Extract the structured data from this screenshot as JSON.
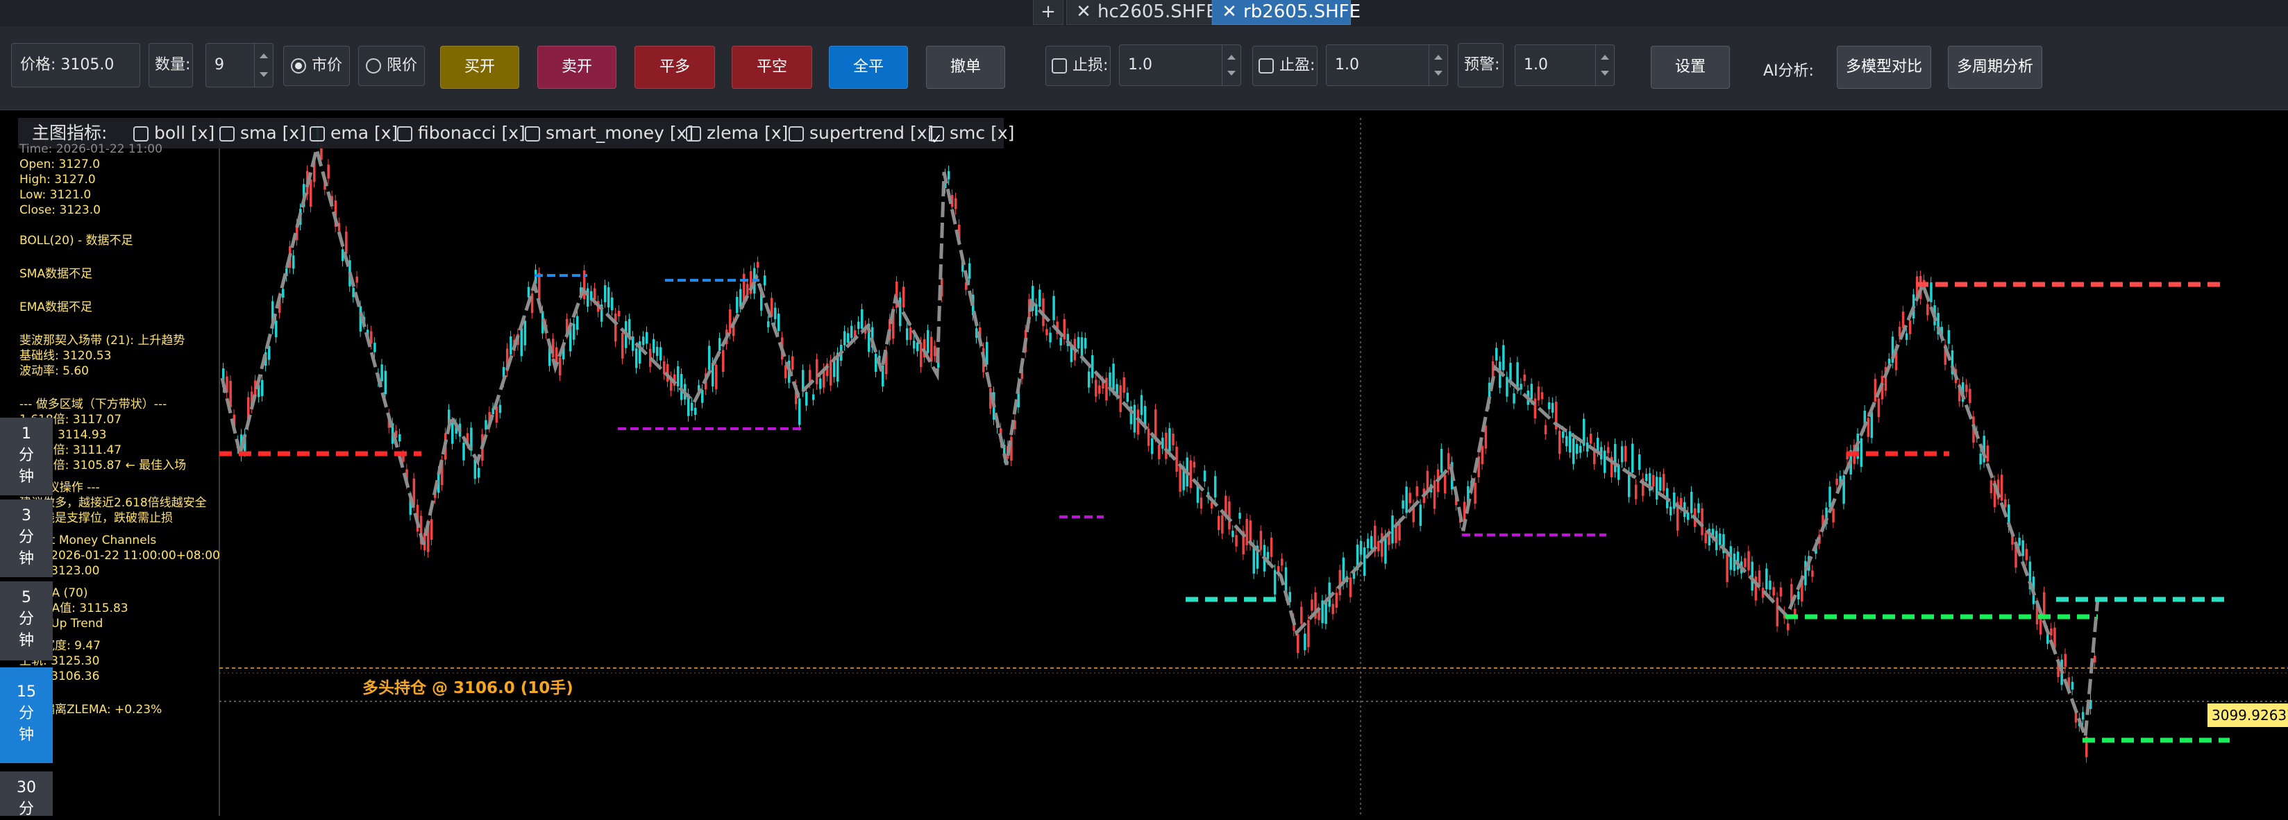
{
  "tabs": {
    "add_label": "+",
    "items": [
      {
        "label": "hc2605.SHFE",
        "active": false
      },
      {
        "label": "rb2605.SHFE",
        "active": true
      }
    ]
  },
  "toolbar": {
    "price": "价格: 3105.0",
    "qty_label": "数量:",
    "qty_value": "9",
    "market_label": "市价",
    "limit_label": "限价",
    "buy_open": "买开",
    "sell_open": "卖开",
    "close_long": "平多",
    "close_short": "平空",
    "close_all": "全平",
    "cancel": "撤单",
    "stoploss_label": "止损:",
    "stoploss_value": "1.0",
    "takeprofit_label": "止盈:",
    "takeprofit_value": "1.0",
    "alert_label": "预警:",
    "alert_value": "1.0",
    "settings": "设置",
    "ai_label": "AI分析:",
    "multi_model": "多模型对比",
    "multi_period": "多周期分析",
    "colors": {
      "buy_open": "#7f6800",
      "sell_open": "#8a1f44",
      "close_long": "#8d1d24",
      "close_short": "#8d1d24",
      "close_all": "#0a6fc9",
      "neutral": "#3a3f47"
    }
  },
  "indicators": {
    "title": "主图指标:",
    "items": [
      {
        "label": "boll [x]",
        "checked": false
      },
      {
        "label": "sma [x]",
        "checked": false
      },
      {
        "label": "ema [x]",
        "checked": false
      },
      {
        "label": "fibonacci [x]",
        "checked": false
      },
      {
        "label": "smart_money [x]",
        "checked": false
      },
      {
        "label": "zlema [x]",
        "checked": false
      },
      {
        "label": "supertrend [x]",
        "checked": false
      },
      {
        "label": "smc [x]",
        "checked": true
      }
    ]
  },
  "info": {
    "time": "Time: 2026-01-22 11:00",
    "open": "Open: 3127.0",
    "high": "High: 3127.0",
    "low": "Low: 3121.0",
    "close": "Close: 3123.0",
    "boll": "BOLL(20) - 数据不足",
    "sma": "SMA数据不足",
    "ema": "EMA数据不足",
    "fib_title": "斐波那契入场带 (21): 上升趋势",
    "fib_base": "基础线: 3120.53",
    "fib_vol": "波动率: 5.60",
    "long_zone": "--- 做多区域（下方带状）---",
    "l1": "1.618倍: 3117.07",
    "l2": "2.0倍: 3114.93",
    "l3": "2.382倍: 3111.47",
    "l4": "2.618倍: 3105.87 ← 最佳入场",
    "op_title": "--- 建议操作 ---",
    "op1": "建议做多，越接近2.618倍线越安全",
    "op2": "带状线是支撑位，跌破需止损",
    "sm_title": "Smart Money Channels",
    "sm_time": "时间: 2026-01-22 11:00:00+08:00",
    "sm_price": "价格: 3123.00",
    "zlema_title": "ZLEMA (70)",
    "zlema_val": "ZLEMA值: 3115.83",
    "trend": "趋势: Up Trend",
    "band_width": "通道宽度: 9.47",
    "upper": "上轨: 3125.30",
    "lower": "下轨: 3106.36",
    "dev": "价格偏离ZLEMA: +0.23%"
  },
  "timeframes": [
    {
      "label": "1\n分\n钟",
      "active": false
    },
    {
      "label": "3\n分\n钟",
      "active": false
    },
    {
      "label": "5\n分\n钟",
      "active": false
    },
    {
      "label": "15\n分\n钟",
      "active": true
    },
    {
      "label": "30\n分",
      "active": false
    }
  ],
  "position_label": "多头持仓 @ 3106.0 (10手)",
  "price_tag": "3099.9263733",
  "colors": {
    "up": "#ef4444",
    "down": "#22d3d3",
    "zigzag": "#8c8c8c",
    "position": "#f5a623"
  }
}
